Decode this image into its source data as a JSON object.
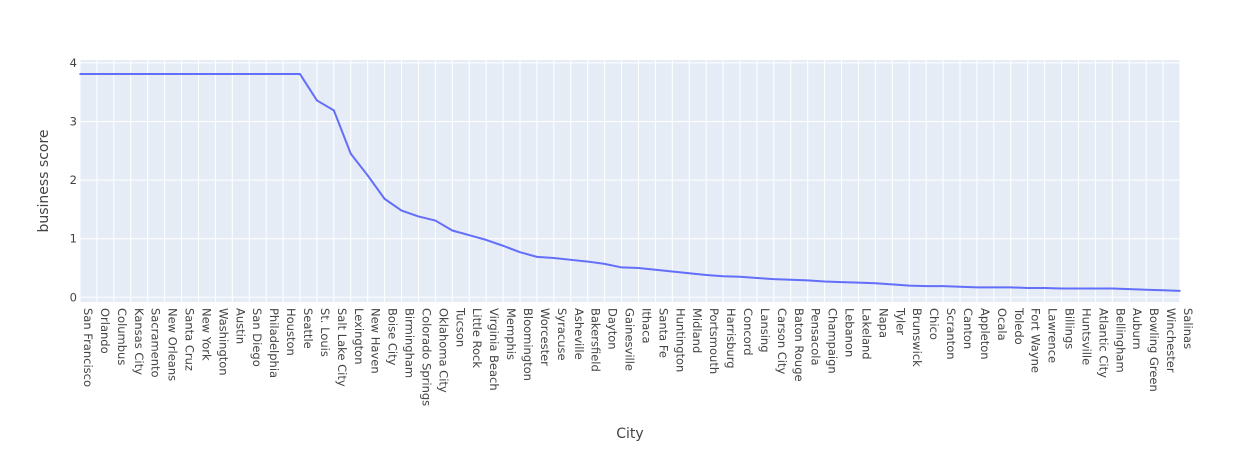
{
  "chart_data": {
    "type": "line",
    "xlabel": "City",
    "ylabel": "business score",
    "ylim": [
      -0.08,
      4.05
    ],
    "yticks": [
      0,
      1,
      2,
      3,
      4
    ],
    "grid": true,
    "legend": "none",
    "colors": {
      "line": "#636efa",
      "plot_bg": "#e5ecf6",
      "grid": "#ffffff",
      "text": "#444444"
    },
    "categories": [
      "San Francisco",
      "Orlando",
      "Columbus",
      "Kansas City",
      "Sacramento",
      "New Orleans",
      "Santa Cruz",
      "New York",
      "Washington",
      "Austin",
      "San Diego",
      "Philadelphia",
      "Houston",
      "Seattle",
      "St. Louis",
      "Salt Lake City",
      "Lexington",
      "New Haven",
      "Boise City",
      "Birmingham",
      "Colorado Springs",
      "Oklahoma City",
      "Tucson",
      "Little Rock",
      "Virginia Beach",
      "Memphis",
      "Bloomington",
      "Worcester",
      "Syracuse",
      "Asheville",
      "Bakersfield",
      "Dayton",
      "Gainesville",
      "Ithaca",
      "Santa Fe",
      "Huntington",
      "Midland",
      "Portsmouth",
      "Harrisburg",
      "Concord",
      "Lansing",
      "Carson City",
      "Baton Rouge",
      "Pensacola",
      "Champaign",
      "Lebanon",
      "Lakeland",
      "Napa",
      "Tyler",
      "Brunswick",
      "Chico",
      "Scranton",
      "Canton",
      "Appleton",
      "Ocala",
      "Toledo",
      "Fort Wayne",
      "Lawrence",
      "Billings",
      "Huntsville",
      "Atlantic City",
      "Bellingham",
      "Auburn",
      "Bowling Green",
      "Winchester",
      "Salinas"
    ],
    "values": [
      3.81,
      3.81,
      3.81,
      3.81,
      3.81,
      3.81,
      3.81,
      3.81,
      3.81,
      3.81,
      3.81,
      3.81,
      3.81,
      3.81,
      3.36,
      3.19,
      2.45,
      2.08,
      1.68,
      1.48,
      1.38,
      1.31,
      1.14,
      1.06,
      0.98,
      0.88,
      0.77,
      0.69,
      0.67,
      0.64,
      0.61,
      0.57,
      0.51,
      0.5,
      0.47,
      0.44,
      0.41,
      0.38,
      0.36,
      0.35,
      0.33,
      0.31,
      0.3,
      0.29,
      0.27,
      0.26,
      0.25,
      0.24,
      0.22,
      0.2,
      0.19,
      0.19,
      0.18,
      0.17,
      0.17,
      0.17,
      0.16,
      0.16,
      0.15,
      0.15,
      0.15,
      0.15,
      0.14,
      0.13,
      0.12,
      0.11
    ]
  }
}
